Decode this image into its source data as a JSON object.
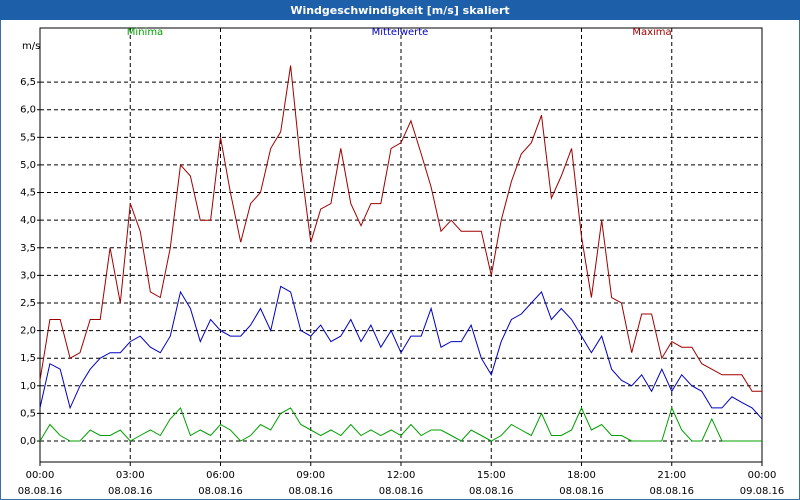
{
  "chart_data": {
    "type": "line",
    "title": "Windgeschwindigkeit [m/s] skaliert",
    "y_label": "m/s",
    "x": [
      0,
      0.33,
      0.67,
      1,
      1.33,
      1.67,
      2,
      2.33,
      2.67,
      3,
      3.33,
      3.67,
      4,
      4.33,
      4.67,
      5,
      5.33,
      5.67,
      6,
      6.33,
      6.67,
      7,
      7.33,
      7.67,
      8,
      8.33,
      8.67,
      9,
      9.33,
      9.67,
      10,
      10.33,
      10.67,
      11,
      11.33,
      11.67,
      12,
      12.33,
      12.67,
      13,
      13.33,
      13.67,
      14,
      14.33,
      14.67,
      15,
      15.33,
      15.67,
      16,
      16.33,
      16.67,
      17,
      17.33,
      17.67,
      18,
      18.33,
      18.67,
      19,
      19.33,
      19.67,
      20,
      20.33,
      20.67,
      21,
      21.33,
      21.67,
      22,
      22.33,
      22.67,
      23,
      23.33,
      23.67,
      24
    ],
    "series": [
      {
        "name": "Minima",
        "color": "#00a000",
        "values": [
          0.0,
          0.3,
          0.1,
          0.0,
          0.0,
          0.2,
          0.1,
          0.1,
          0.2,
          0.0,
          0.1,
          0.2,
          0.1,
          0.4,
          0.6,
          0.1,
          0.2,
          0.1,
          0.3,
          0.2,
          0.0,
          0.1,
          0.3,
          0.2,
          0.5,
          0.6,
          0.3,
          0.2,
          0.1,
          0.2,
          0.1,
          0.3,
          0.1,
          0.2,
          0.1,
          0.2,
          0.1,
          0.3,
          0.1,
          0.2,
          0.2,
          0.1,
          0.0,
          0.2,
          0.1,
          0.0,
          0.1,
          0.3,
          0.2,
          0.1,
          0.5,
          0.1,
          0.1,
          0.2,
          0.6,
          0.2,
          0.3,
          0.1,
          0.1,
          0.0,
          0.0,
          0.0,
          0.0,
          0.6,
          0.2,
          0.0,
          0.0,
          0.4,
          0.0,
          0.0,
          0.0,
          0.0,
          0.0
        ]
      },
      {
        "name": "Mittelwerte",
        "color": "#0000c0",
        "values": [
          0.6,
          1.4,
          1.3,
          0.6,
          1.0,
          1.3,
          1.5,
          1.6,
          1.6,
          1.8,
          1.9,
          1.7,
          1.6,
          1.9,
          2.7,
          2.4,
          1.8,
          2.2,
          2.0,
          1.9,
          1.9,
          2.1,
          2.4,
          2.0,
          2.8,
          2.7,
          2.0,
          1.9,
          2.1,
          1.8,
          1.9,
          2.2,
          1.8,
          2.1,
          1.7,
          2.0,
          1.6,
          1.9,
          1.9,
          2.4,
          1.7,
          1.8,
          1.8,
          2.1,
          1.5,
          1.2,
          1.8,
          2.2,
          2.3,
          2.5,
          2.7,
          2.2,
          2.4,
          2.2,
          1.9,
          1.6,
          1.9,
          1.3,
          1.1,
          1.0,
          1.2,
          0.9,
          1.3,
          0.9,
          1.2,
          1.0,
          0.9,
          0.6,
          0.6,
          0.8,
          0.7,
          0.6,
          0.4
        ]
      },
      {
        "name": "Maxima",
        "color": "#a00000",
        "values": [
          1.1,
          2.2,
          2.2,
          1.5,
          1.6,
          2.2,
          2.2,
          3.5,
          2.5,
          4.3,
          3.8,
          2.7,
          2.6,
          3.5,
          5.0,
          4.8,
          4.0,
          4.0,
          5.5,
          4.5,
          3.6,
          4.3,
          4.5,
          5.3,
          5.6,
          6.8,
          5.0,
          3.6,
          4.2,
          4.3,
          5.3,
          4.3,
          3.9,
          4.3,
          4.3,
          5.3,
          5.4,
          5.8,
          5.2,
          4.6,
          3.8,
          4.0,
          3.8,
          3.8,
          3.8,
          3.0,
          4.0,
          4.7,
          5.2,
          5.4,
          5.9,
          4.4,
          4.8,
          5.3,
          3.7,
          2.6,
          4.0,
          2.6,
          2.5,
          1.6,
          2.3,
          2.3,
          1.5,
          1.8,
          1.7,
          1.7,
          1.4,
          1.3,
          1.2,
          1.2,
          1.2,
          0.9,
          0.9
        ]
      }
    ],
    "xlim": [
      0,
      24
    ],
    "xticks": [
      {
        "value": 0,
        "label": "00:00",
        "date": "08.08.16"
      },
      {
        "value": 3,
        "label": "03:00",
        "date": "08.08.16"
      },
      {
        "value": 6,
        "label": "06:00",
        "date": "08.08.16"
      },
      {
        "value": 9,
        "label": "09:00",
        "date": "08.08.16"
      },
      {
        "value": 12,
        "label": "12:00",
        "date": "08.08.16"
      },
      {
        "value": 15,
        "label": "15:00",
        "date": "08.08.16"
      },
      {
        "value": 18,
        "label": "18:00",
        "date": "08.08.16"
      },
      {
        "value": 21,
        "label": "21:00",
        "date": "08.08.16"
      },
      {
        "value": 24,
        "label": "00:00",
        "date": "09.08.16"
      }
    ],
    "ylim": [
      -0.38,
      7.48
    ],
    "yticks": [
      {
        "value": 0,
        "label": "0,0"
      },
      {
        "value": 0.5,
        "label": "0,5"
      },
      {
        "value": 1,
        "label": "1,0"
      },
      {
        "value": 1.5,
        "label": "1,5"
      },
      {
        "value": 2,
        "label": "2,0"
      },
      {
        "value": 2.5,
        "label": "2,5"
      },
      {
        "value": 3,
        "label": "3,0"
      },
      {
        "value": 3.5,
        "label": "3,5"
      },
      {
        "value": 4,
        "label": "4,0"
      },
      {
        "value": 4.5,
        "label": "4,5"
      },
      {
        "value": 5,
        "label": "5,0"
      },
      {
        "value": 5.5,
        "label": "5,5"
      },
      {
        "value": 6,
        "label": "6,0"
      },
      {
        "value": 6.5,
        "label": "6,5"
      }
    ],
    "grid": true
  }
}
